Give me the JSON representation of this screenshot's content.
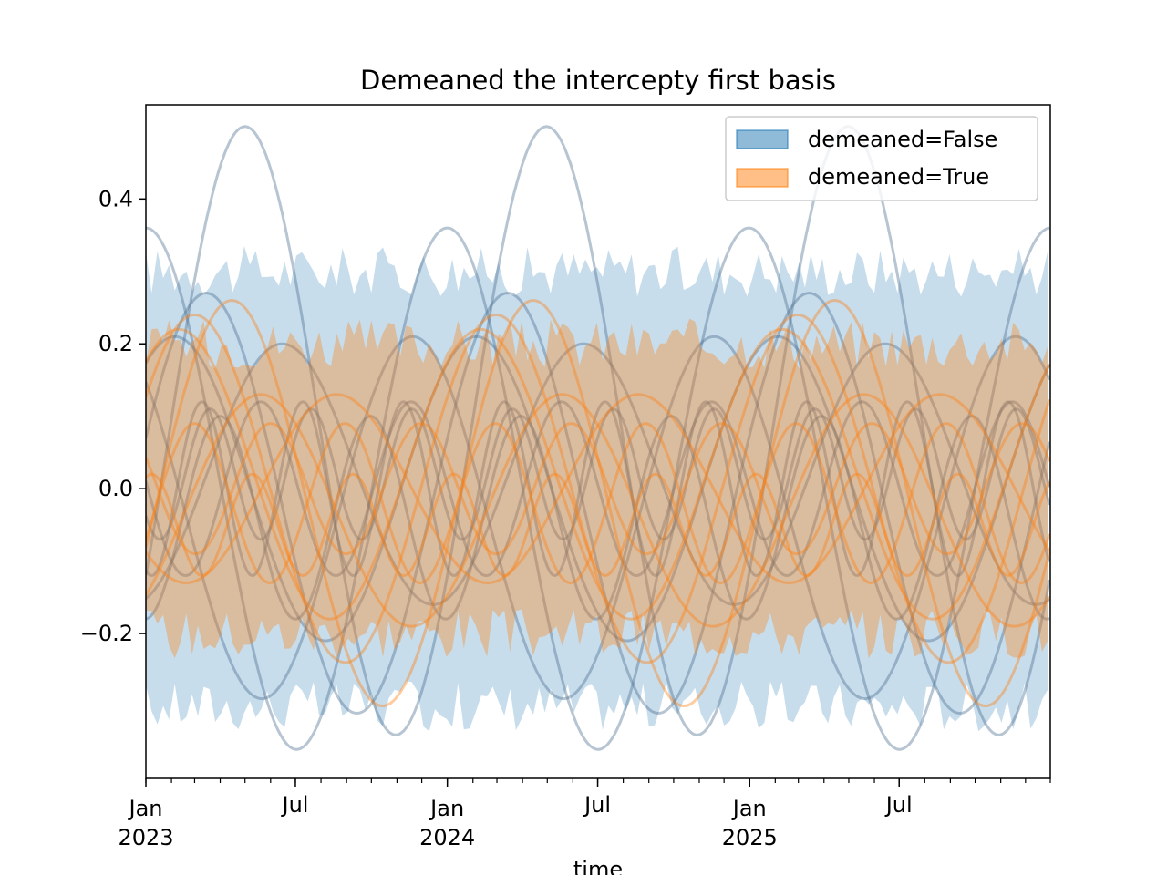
{
  "chart_data": {
    "type": "line",
    "title": "Demeaned the intercepty first basis",
    "xlabel": "time",
    "ylabel": "",
    "x_range": [
      "2023-01-01",
      "2025-12-31"
    ],
    "ylim": [
      -0.4,
      0.53
    ],
    "grid": false,
    "legend_position": "top-right",
    "y_ticks": [
      {
        "value": -0.2,
        "label": "−0.2"
      },
      {
        "value": 0.0,
        "label": "0.0"
      },
      {
        "value": 0.2,
        "label": "0.2"
      },
      {
        "value": 0.4,
        "label": "0.4"
      }
    ],
    "x_ticks": [
      {
        "date": "2023-01-01",
        "label": "Jan",
        "year": "2023"
      },
      {
        "date": "2023-07-01",
        "label": "Jul",
        "year": ""
      },
      {
        "date": "2024-01-01",
        "label": "Jan",
        "year": "2024"
      },
      {
        "date": "2024-07-01",
        "label": "Jul",
        "year": ""
      },
      {
        "date": "2025-01-01",
        "label": "Jan",
        "year": "2025"
      },
      {
        "date": "2025-07-01",
        "label": "Jul",
        "year": ""
      }
    ],
    "series": [
      {
        "name": "demeaned=False",
        "color": "#1f77b4",
        "band_upper": 0.3,
        "band_lower": -0.3,
        "curves": [
          {
            "amplitude": 0.42,
            "offset": 0.08,
            "period_days": 365,
            "peak_date": "2023-05-01"
          },
          {
            "amplitude": 0.36,
            "offset": 0.0,
            "period_days": 365,
            "peak_date": "2023-01-01"
          },
          {
            "amplitude": 0.29,
            "offset": -0.02,
            "period_days": 365,
            "peak_date": "2023-03-15"
          },
          {
            "amplitude": 0.25,
            "offset": -0.04,
            "period_days": 365,
            "peak_date": "2023-11-20"
          },
          {
            "amplitude": 0.21,
            "offset": 0.0,
            "period_days": 365,
            "peak_date": "2023-02-05"
          },
          {
            "amplitude": 0.18,
            "offset": 0.02,
            "period_days": 365,
            "peak_date": "2023-06-15"
          },
          {
            "amplitude": 0.14,
            "offset": -0.04,
            "period_days": 182,
            "peak_date": "2023-04-01"
          },
          {
            "amplitude": 0.12,
            "offset": 0.0,
            "period_days": 182,
            "peak_date": "2023-05-20"
          },
          {
            "amplitude": 0.12,
            "offset": 0.0,
            "period_days": 122,
            "peak_date": "2023-07-10"
          },
          {
            "amplitude": 0.09,
            "offset": 0.02,
            "period_days": 122,
            "peak_date": "2023-03-20"
          }
        ]
      },
      {
        "name": "demeaned=True",
        "color": "#ff7f0e",
        "band_upper": 0.2,
        "band_lower": -0.2,
        "curves": [
          {
            "amplitude": 0.28,
            "offset": -0.02,
            "period_days": 365,
            "peak_date": "2023-04-15"
          },
          {
            "amplitude": 0.24,
            "offset": 0.0,
            "period_days": 365,
            "peak_date": "2023-03-01"
          },
          {
            "amplitude": 0.2,
            "offset": 0.02,
            "period_days": 365,
            "peak_date": "2023-02-10"
          },
          {
            "amplitude": 0.16,
            "offset": -0.03,
            "period_days": 365,
            "peak_date": "2023-05-20"
          },
          {
            "amplitude": 0.13,
            "offset": 0.0,
            "period_days": 365,
            "peak_date": "2023-08-20"
          },
          {
            "amplitude": 0.11,
            "offset": -0.02,
            "period_days": 182,
            "peak_date": "2023-03-01"
          },
          {
            "amplitude": 0.09,
            "offset": 0.0,
            "period_days": 182,
            "peak_date": "2023-06-01"
          },
          {
            "amplitude": 0.07,
            "offset": -0.05,
            "period_days": 122,
            "peak_date": "2023-05-10"
          }
        ]
      }
    ]
  }
}
